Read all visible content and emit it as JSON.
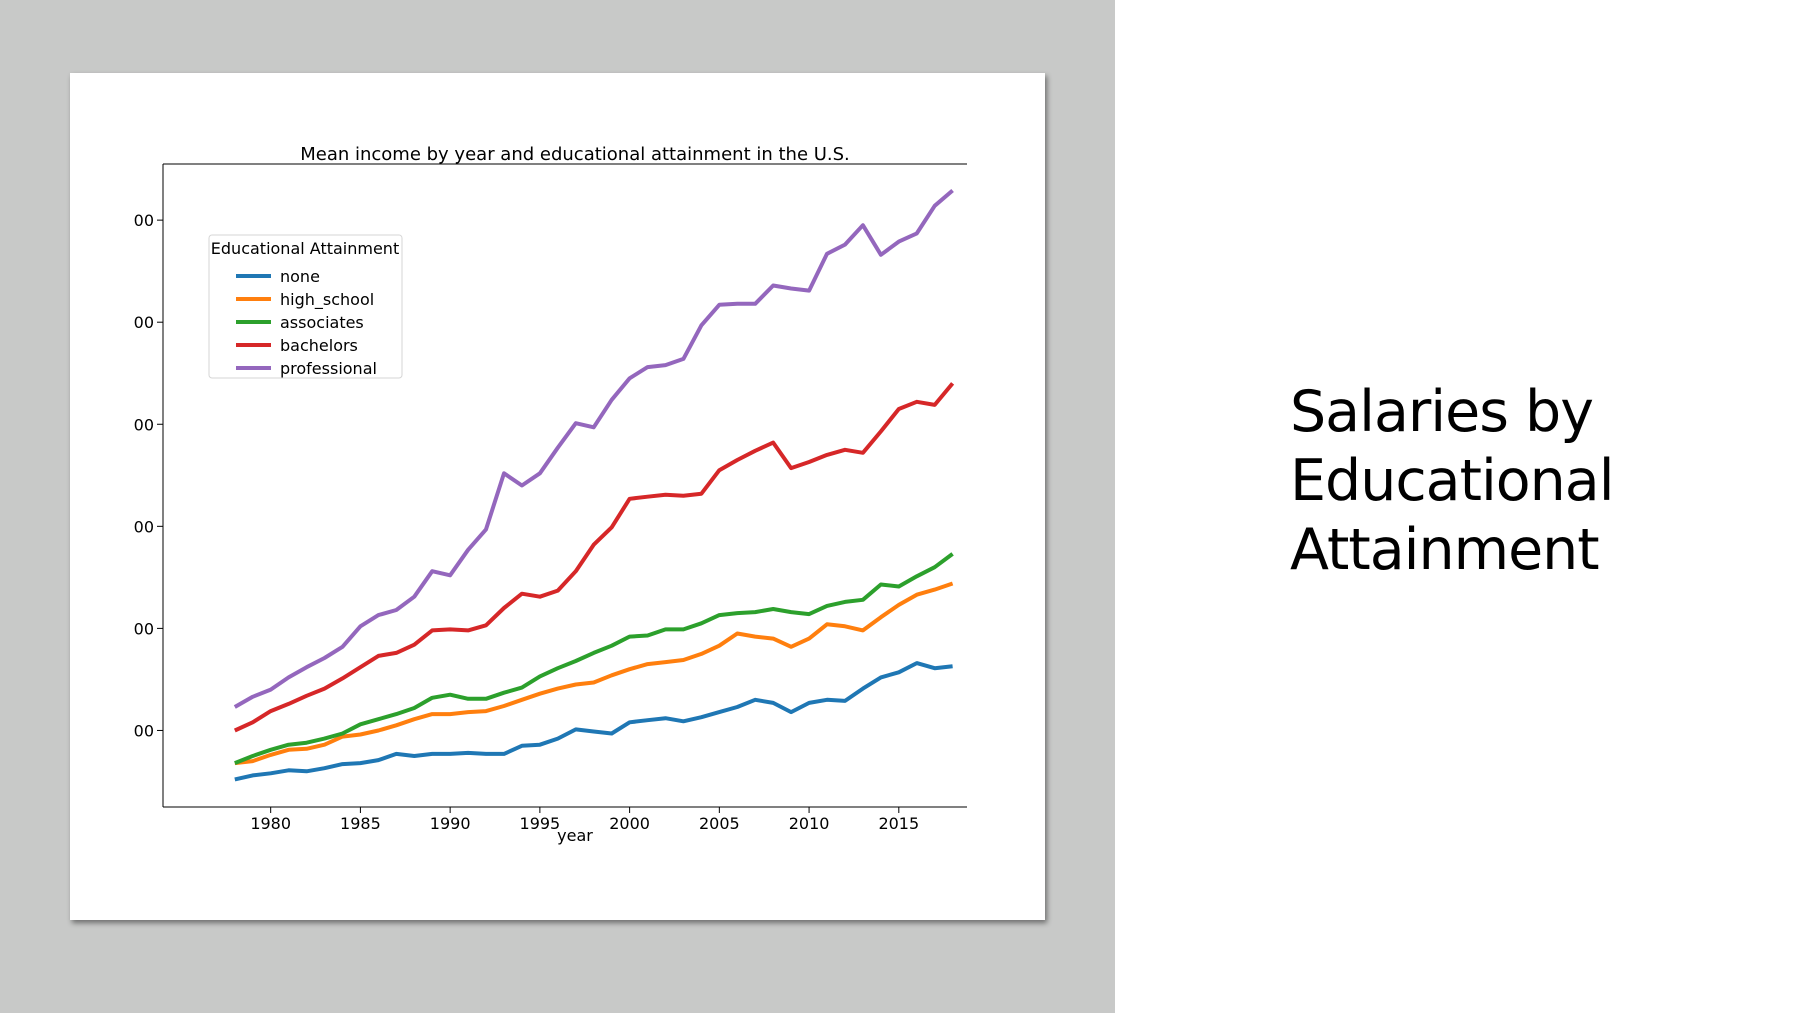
{
  "slide": {
    "title_lines": [
      "Salaries by",
      "Educational",
      "Attainment"
    ]
  },
  "chart_data": {
    "type": "line",
    "title": "Mean income by year and educational attainment in the U.S.",
    "xlabel": "year",
    "ylabel": "",
    "x": [
      1978,
      1979,
      1980,
      1981,
      1982,
      1983,
      1984,
      1985,
      1986,
      1987,
      1988,
      1989,
      1990,
      1991,
      1992,
      1993,
      1994,
      1995,
      1996,
      1997,
      1998,
      1999,
      2000,
      2001,
      2002,
      2003,
      2004,
      2005,
      2006,
      2007,
      2008,
      2009,
      2010,
      2011,
      2012,
      2013,
      2014,
      2015,
      2016,
      2017,
      2018
    ],
    "xlim": [
      1974,
      2018.8
    ],
    "ylim": [
      -0.75,
      5.55
    ],
    "xticks": [
      1980,
      1985,
      1990,
      1995,
      2000,
      2005,
      2010,
      2015
    ],
    "ytick_values": [
      0,
      1,
      2,
      3,
      4,
      5
    ],
    "ytick_labels": [
      "00",
      "00",
      "00",
      "00",
      "00",
      "00"
    ],
    "grid": false,
    "legend": {
      "title": "Educational Attainment",
      "position": "upper-left"
    },
    "series": [
      {
        "name": "none",
        "color": "#1f77b4",
        "values": [
          -0.48,
          -0.44,
          -0.42,
          -0.39,
          -0.4,
          -0.37,
          -0.33,
          -0.32,
          -0.29,
          -0.23,
          -0.25,
          -0.23,
          -0.23,
          -0.22,
          -0.23,
          -0.23,
          -0.15,
          -0.14,
          -0.08,
          0.01,
          -0.01,
          -0.03,
          0.08,
          0.1,
          0.12,
          0.09,
          0.13,
          0.18,
          0.23,
          0.3,
          0.27,
          0.18,
          0.27,
          0.3,
          0.29,
          0.41,
          0.52,
          0.57,
          0.66,
          0.61,
          0.63
        ]
      },
      {
        "name": "high_school",
        "color": "#ff7f0e",
        "values": [
          -0.32,
          -0.3,
          -0.24,
          -0.19,
          -0.18,
          -0.14,
          -0.06,
          -0.04,
          0.0,
          0.05,
          0.11,
          0.16,
          0.16,
          0.18,
          0.19,
          0.24,
          0.3,
          0.36,
          0.41,
          0.45,
          0.47,
          0.54,
          0.6,
          0.65,
          0.67,
          0.69,
          0.75,
          0.83,
          0.95,
          0.92,
          0.9,
          0.82,
          0.9,
          1.04,
          1.02,
          0.98,
          1.11,
          1.23,
          1.33,
          1.38,
          1.44
        ]
      },
      {
        "name": "associates",
        "color": "#2ca02c",
        "values": [
          -0.32,
          -0.25,
          -0.19,
          -0.14,
          -0.12,
          -0.08,
          -0.03,
          0.06,
          0.11,
          0.16,
          0.22,
          0.32,
          0.35,
          0.31,
          0.31,
          0.37,
          0.42,
          0.53,
          0.61,
          0.68,
          0.76,
          0.83,
          0.92,
          0.93,
          0.99,
          0.99,
          1.05,
          1.13,
          1.15,
          1.16,
          1.19,
          1.16,
          1.14,
          1.22,
          1.26,
          1.28,
          1.43,
          1.41,
          1.51,
          1.6,
          1.73
        ]
      },
      {
        "name": "bachelors",
        "color": "#d62728",
        "values": [
          0.0,
          0.08,
          0.19,
          0.26,
          0.34,
          0.41,
          0.51,
          0.62,
          0.73,
          0.76,
          0.84,
          0.98,
          0.99,
          0.98,
          1.03,
          1.2,
          1.34,
          1.31,
          1.37,
          1.56,
          1.82,
          1.99,
          2.27,
          2.29,
          2.31,
          2.3,
          2.32,
          2.55,
          2.65,
          2.74,
          2.82,
          2.57,
          2.63,
          2.7,
          2.75,
          2.72,
          2.93,
          3.15,
          3.22,
          3.19,
          3.4
        ]
      },
      {
        "name": "professional",
        "color": "#9467bd",
        "values": [
          0.23,
          0.33,
          0.4,
          0.52,
          0.62,
          0.71,
          0.82,
          1.02,
          1.13,
          1.18,
          1.31,
          1.56,
          1.52,
          1.77,
          1.97,
          2.52,
          2.4,
          2.52,
          2.77,
          3.01,
          2.97,
          3.24,
          3.45,
          3.56,
          3.58,
          3.64,
          3.97,
          4.17,
          4.18,
          4.18,
          4.36,
          4.33,
          4.31,
          4.67,
          4.76,
          4.95,
          4.66,
          4.79,
          4.87,
          5.14,
          5.29
        ]
      }
    ]
  }
}
